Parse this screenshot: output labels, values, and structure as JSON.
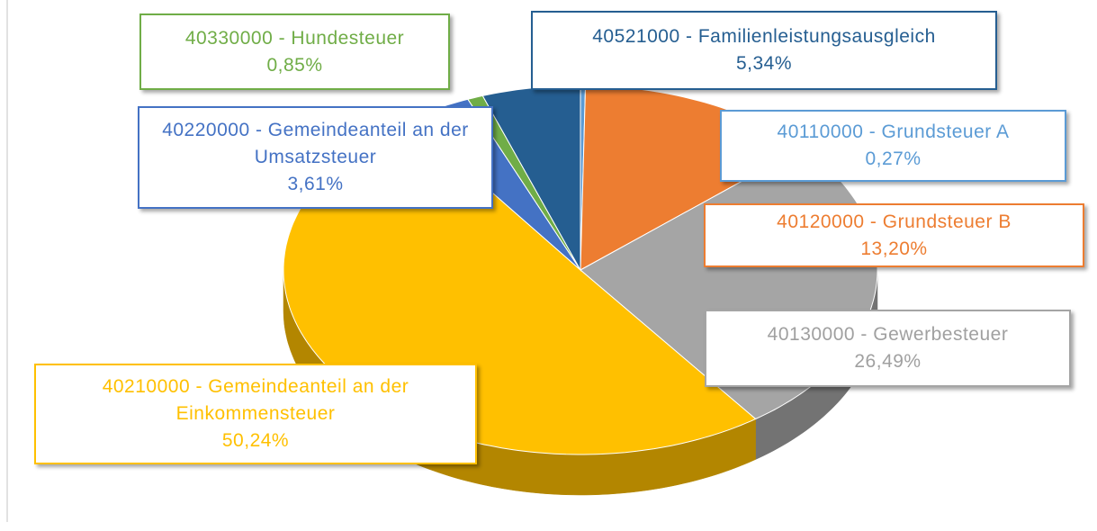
{
  "chart_data": {
    "type": "pie3d",
    "categories": [
      "40110000 - Grundsteuer A",
      "40120000 - Grundsteuer B",
      "40130000 - Gewerbesteuer",
      "40210000 - Gemeindeanteil an der Einkommensteuer",
      "40220000 - Gemeindeanteil an der Umsatzsteuer",
      "40330000 - Hundesteuer",
      "40521000 - Familienleistungsausgleich"
    ],
    "values": [
      0.27,
      13.2,
      26.49,
      50.24,
      3.61,
      0.85,
      5.34
    ],
    "value_labels": [
      "0,27%",
      "13,20%",
      "26,49%",
      "50,24%",
      "3,61%",
      "0,85%",
      "5,34%"
    ],
    "colors": [
      "#5b9bd5",
      "#ed7d31",
      "#a5a5a5",
      "#ffc000",
      "#4472c4",
      "#70ad47",
      "#255e91"
    ]
  }
}
